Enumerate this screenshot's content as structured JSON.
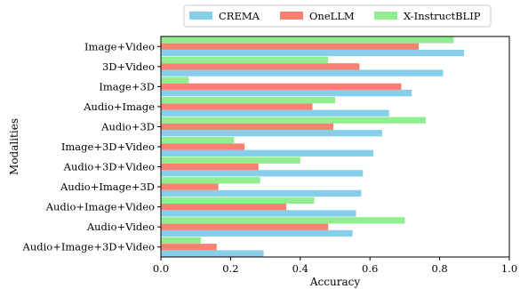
{
  "chart_data": {
    "type": "bar",
    "orientation": "horizontal",
    "xlabel": "Accuracy",
    "ylabel": "Modalities",
    "xlim": [
      0.0,
      1.0
    ],
    "xticks": [
      "0.0",
      "0.2",
      "0.4",
      "0.6",
      "0.8",
      "1.0"
    ],
    "grid": false,
    "legend_position": "top",
    "categories": [
      "Image+Video",
      "3D+Video",
      "Image+3D",
      "Audio+Image",
      "Audio+3D",
      "Image+3D+Video",
      "Audio+3D+Video",
      "Audio+Image+3D",
      "Audio+Image+Video",
      "Audio+Video",
      "Audio+Image+3D+Video"
    ],
    "series": [
      {
        "name": "CREMA",
        "color": "#87ceeb",
        "values": [
          0.87,
          0.81,
          0.72,
          0.655,
          0.635,
          0.61,
          0.58,
          0.575,
          0.56,
          0.55,
          0.295
        ]
      },
      {
        "name": "OneLLM",
        "color": "#fa8072",
        "values": [
          0.74,
          0.57,
          0.69,
          0.435,
          0.495,
          0.24,
          0.28,
          0.165,
          0.36,
          0.48,
          0.16
        ]
      },
      {
        "name": "X-InstructBLIP",
        "color": "#90ee90",
        "values": [
          0.84,
          0.48,
          0.08,
          0.5,
          0.76,
          0.21,
          0.4,
          0.285,
          0.44,
          0.7,
          0.115
        ]
      }
    ]
  }
}
